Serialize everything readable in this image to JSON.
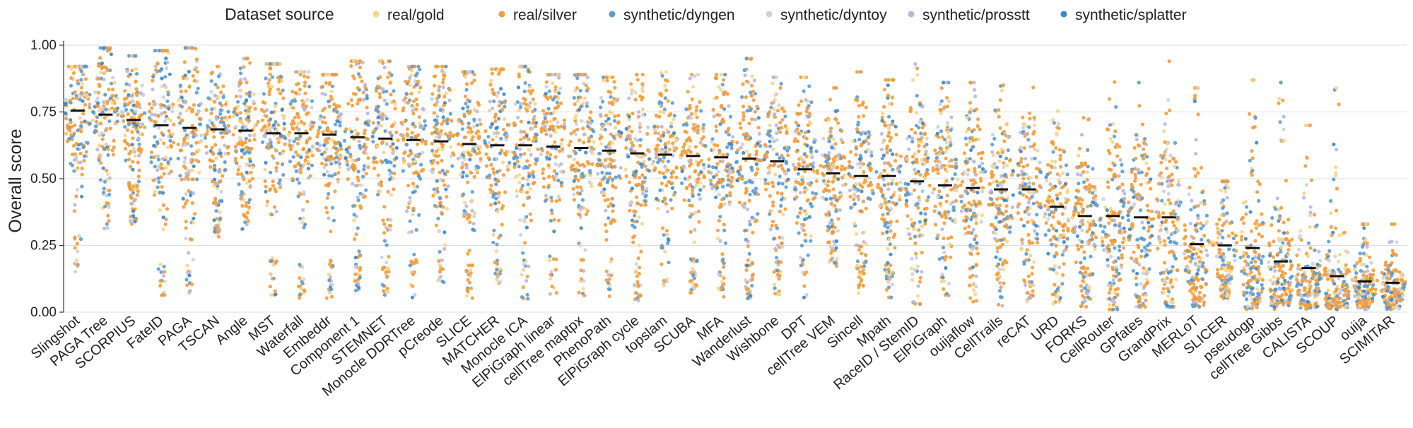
{
  "chart_data": {
    "type": "scatter",
    "subtype": "beeswarm",
    "title": "",
    "xlabel": "",
    "ylabel": "Overall score",
    "ylim": [
      0,
      1
    ],
    "yticks": [
      "0.00",
      "0.25",
      "0.50",
      "0.75",
      "1.00"
    ],
    "grid": true,
    "legend": {
      "title": "Dataset source",
      "placement": "top",
      "entries": [
        {
          "name": "real/gold",
          "color": "#f7d48a"
        },
        {
          "name": "real/silver",
          "color": "#f39c38"
        },
        {
          "name": "synthetic/dyngen",
          "color": "#5b9bd1"
        },
        {
          "name": "synthetic/dyntoy",
          "color": "#c9cfe0"
        },
        {
          "name": "synthetic/prosstt",
          "color": "#b7b7dd"
        },
        {
          "name": "synthetic/splatter",
          "color": "#3b86c4"
        }
      ]
    },
    "categories": [
      "Slingshot",
      "PAGA Tree",
      "SCORPIUS",
      "FateID",
      "PAGA",
      "TSCAN",
      "Angle",
      "MST",
      "Waterfall",
      "Embeddr",
      "Component 1",
      "STEMNET",
      "Monocle DDRTree",
      "pCreode",
      "SLICE",
      "MATCHER",
      "Monocle ICA",
      "ElPiGraph linear",
      "cellTree maptpx",
      "PhenoPath",
      "ElPiGraph cycle",
      "topslam",
      "SCUBA",
      "MFA",
      "Wanderlust",
      "Wishbone",
      "DPT",
      "cellTree VEM",
      "Sincell",
      "Mpath",
      "RaceID / StemID",
      "ElPiGraph",
      "ouijaflow",
      "CellTrails",
      "reCAT",
      "URD",
      "FORKS",
      "CellRouter",
      "GPfates",
      "GrandPrix",
      "MERLoT",
      "SLICER",
      "pseudogp",
      "cellTree Gibbs",
      "CALISTA",
      "SCOUP",
      "ouija",
      "SCIMITAR"
    ],
    "means": [
      0.755,
      0.74,
      0.72,
      0.7,
      0.69,
      0.685,
      0.68,
      0.67,
      0.67,
      0.665,
      0.655,
      0.65,
      0.645,
      0.64,
      0.63,
      0.625,
      0.625,
      0.62,
      0.615,
      0.605,
      0.595,
      0.59,
      0.585,
      0.58,
      0.575,
      0.565,
      0.535,
      0.52,
      0.51,
      0.51,
      0.49,
      0.475,
      0.465,
      0.46,
      0.46,
      0.395,
      0.36,
      0.36,
      0.355,
      0.355,
      0.255,
      0.25,
      0.24,
      0.19,
      0.165,
      0.135,
      0.115,
      0.11
    ],
    "ranges": [
      [
        0.14,
        0.92
      ],
      [
        0.31,
        0.99
      ],
      [
        0.33,
        0.96
      ],
      [
        0.05,
        0.98
      ],
      [
        0.06,
        0.99
      ],
      [
        0.28,
        0.92
      ],
      [
        0.29,
        0.95
      ],
      [
        0.05,
        0.93
      ],
      [
        0.05,
        0.9
      ],
      [
        0.05,
        0.89
      ],
      [
        0.08,
        0.94
      ],
      [
        0.06,
        0.94
      ],
      [
        0.05,
        0.92
      ],
      [
        0.08,
        0.92
      ],
      [
        0.03,
        0.9
      ],
      [
        0.05,
        0.91
      ],
      [
        0.05,
        0.92
      ],
      [
        0.06,
        0.89
      ],
      [
        0.05,
        0.89
      ],
      [
        0.05,
        0.88
      ],
      [
        0.04,
        0.89
      ],
      [
        0.1,
        0.9
      ],
      [
        0.07,
        0.89
      ],
      [
        0.05,
        0.89
      ],
      [
        0.05,
        0.95
      ],
      [
        0.05,
        0.88
      ],
      [
        0.05,
        0.88
      ],
      [
        0.15,
        0.84
      ],
      [
        0.04,
        0.9
      ],
      [
        0.04,
        0.87
      ],
      [
        0.03,
        0.93
      ],
      [
        0.05,
        0.86
      ],
      [
        0.03,
        0.86
      ],
      [
        0.02,
        0.88
      ],
      [
        0.04,
        0.92
      ],
      [
        0.02,
        0.87
      ],
      [
        0.02,
        0.88
      ],
      [
        0.01,
        0.93
      ],
      [
        0.02,
        0.86
      ],
      [
        0.02,
        0.94
      ],
      [
        0.02,
        0.84
      ],
      [
        0.05,
        0.49
      ],
      [
        0.01,
        0.87
      ],
      [
        0.01,
        0.86
      ],
      [
        0.01,
        0.7
      ],
      [
        0.01,
        0.84
      ],
      [
        0.01,
        0.33
      ],
      [
        0.01,
        0.33
      ]
    ]
  }
}
